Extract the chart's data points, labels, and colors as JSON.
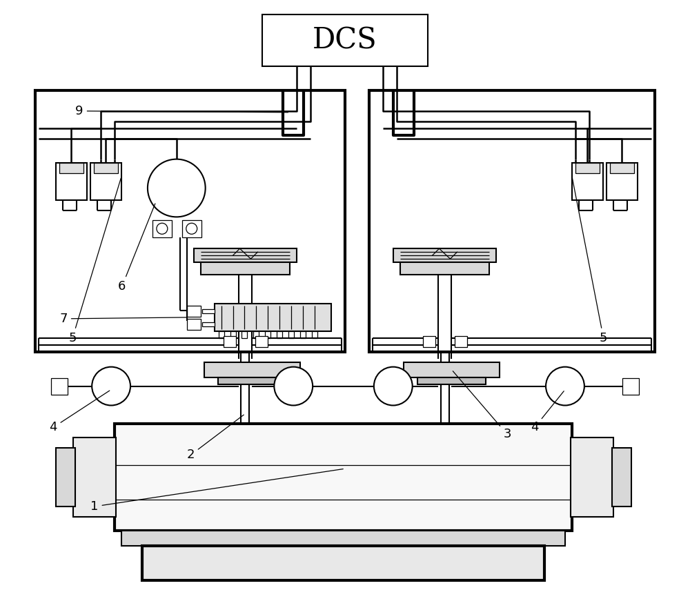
{
  "bg_color": "#ffffff",
  "lc": "#000000",
  "lw_thick": 3.0,
  "lw_med": 1.5,
  "lw_thin": 0.9,
  "lw_wire": 1.8,
  "figsize": [
    10.0,
    8.55
  ],
  "dpi": 100,
  "label_fs": 13
}
